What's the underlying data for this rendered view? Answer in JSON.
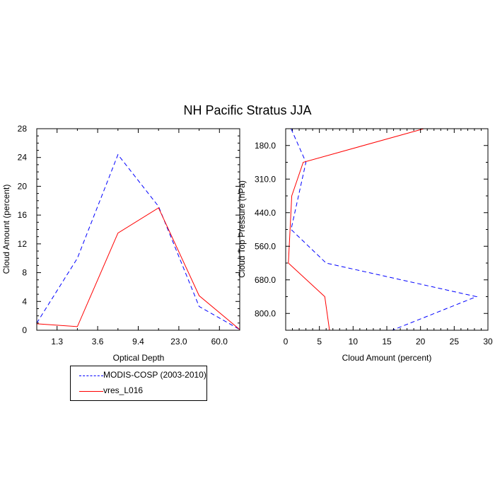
{
  "figure_title": "NH Pacific Stratus JJA",
  "chart_data": [
    {
      "type": "line",
      "title": "NH Pacific Stratus JJA",
      "xlabel": "Optical Depth",
      "ylabel": "Cloud Amount (percent)",
      "x_categories": [
        "",
        "1.3",
        "",
        "3.6",
        "",
        "9.4",
        "",
        "23.0",
        "",
        "60.0",
        ""
      ],
      "x_ticklabels": [
        "1.3",
        "3.6",
        "9.4",
        "23.0",
        "60.0"
      ],
      "ylim": [
        0,
        28
      ],
      "y_ticks": [
        0,
        4,
        8,
        12,
        16,
        20,
        24,
        28
      ],
      "series": [
        {
          "name": "MODIS-COSP (2003-2010)",
          "color": "#0000ff",
          "style": "dashed",
          "x_index": [
            0,
            2,
            4,
            6,
            8,
            10
          ],
          "values": [
            1.0,
            10.0,
            24.4,
            17.2,
            3.3,
            0.1
          ]
        },
        {
          "name": "vres_L016",
          "color": "#ff0000",
          "style": "solid",
          "x_index": [
            0,
            2,
            4,
            6,
            8,
            10
          ],
          "values": [
            0.9,
            0.5,
            13.5,
            17.0,
            4.8,
            0.1
          ]
        }
      ]
    },
    {
      "type": "line",
      "xlabel": "Cloud Amount (percent)",
      "ylabel": "Cloud Top Pressure (hPa)",
      "xlim": [
        0,
        30
      ],
      "x_ticks": [
        0,
        5,
        10,
        15,
        20,
        25,
        30
      ],
      "y_categories": [
        "",
        "180.0",
        "",
        "310.0",
        "",
        "440.0",
        "",
        "560.0",
        "",
        "680.0",
        "",
        "800.0",
        ""
      ],
      "y_ticklabels": [
        "180.0",
        "310.0",
        "440.0",
        "560.0",
        "680.0",
        "800.0"
      ],
      "series": [
        {
          "name": "MODIS-COSP (2003-2010)",
          "color": "#0000ff",
          "style": "dashed",
          "y_index": [
            0,
            2,
            6,
            8,
            10,
            12
          ],
          "values": [
            0.8,
            3.0,
            0.8,
            6.0,
            28.3,
            15.8
          ]
        },
        {
          "name": "vres_L016",
          "color": "#ff0000",
          "style": "solid",
          "y_index": [
            0,
            2,
            4,
            8,
            10,
            12
          ],
          "values": [
            20.5,
            2.6,
            0.9,
            0.4,
            5.8,
            6.5
          ]
        }
      ]
    }
  ],
  "legend": [
    {
      "label": "MODIS-COSP (2003-2010)",
      "color": "#0000ff",
      "style": "dashed"
    },
    {
      "label": "vres_L016",
      "color": "#ff0000",
      "style": "solid"
    }
  ]
}
